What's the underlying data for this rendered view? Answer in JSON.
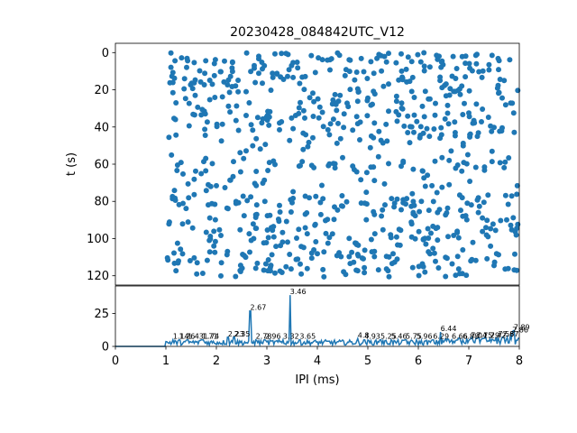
{
  "chart_data": [
    {
      "type": "scatter",
      "title": "20230428_084842UTC_V12",
      "xlabel": "",
      "ylabel": "t (s)",
      "xlim": [
        0,
        8
      ],
      "ylim": [
        125,
        -5
      ],
      "y_inverted": true,
      "yticks": [
        0,
        20,
        40,
        60,
        80,
        100,
        120
      ],
      "color": "#1f77b4",
      "grid": false,
      "points_note_x_range": [
        1.0,
        8.0
      ],
      "points_note_y_range": [
        0,
        121
      ],
      "points": []
    },
    {
      "type": "line",
      "xlabel": "IPI (ms)",
      "ylabel": "",
      "xlim": [
        0,
        8
      ],
      "ylim": [
        0,
        46
      ],
      "xticks": [
        0,
        1,
        2,
        3,
        4,
        5,
        6,
        7,
        8
      ],
      "yticks": [
        0,
        25
      ],
      "color": "#1f77b4",
      "grid": false,
      "peak_labels": [
        {
          "x": 1.14,
          "y": 5,
          "text": "1.14"
        },
        {
          "x": 1.26,
          "y": 5,
          "text": "1.26"
        },
        {
          "x": 1.43,
          "y": 5,
          "text": "1.43"
        },
        {
          "x": 1.71,
          "y": 5,
          "text": "1.71"
        },
        {
          "x": 1.74,
          "y": 5,
          "text": "1.74"
        },
        {
          "x": 2.23,
          "y": 7,
          "text": "2.23"
        },
        {
          "x": 2.35,
          "y": 7,
          "text": "2.35"
        },
        {
          "x": 2.67,
          "y": 27,
          "text": "2.67"
        },
        {
          "x": 2.78,
          "y": 5,
          "text": "2.78"
        },
        {
          "x": 2.96,
          "y": 5,
          "text": "2.96"
        },
        {
          "x": 3.32,
          "y": 5,
          "text": "3.32"
        },
        {
          "x": 3.46,
          "y": 39,
          "text": "3.46"
        },
        {
          "x": 3.65,
          "y": 5,
          "text": "3.65"
        },
        {
          "x": 4.8,
          "y": 6,
          "text": "4.8"
        },
        {
          "x": 4.93,
          "y": 5,
          "text": "4.93"
        },
        {
          "x": 5.25,
          "y": 5,
          "text": "5.25"
        },
        {
          "x": 5.46,
          "y": 5,
          "text": "5.46"
        },
        {
          "x": 5.75,
          "y": 5,
          "text": "5.75"
        },
        {
          "x": 5.96,
          "y": 5,
          "text": "5.96"
        },
        {
          "x": 6.29,
          "y": 5,
          "text": "6.29"
        },
        {
          "x": 6.44,
          "y": 11,
          "text": "6.44"
        },
        {
          "x": 6.66,
          "y": 5,
          "text": "6.66"
        },
        {
          "x": 6.88,
          "y": 5,
          "text": "6.88"
        },
        {
          "x": 7.04,
          "y": 6,
          "text": "7.04"
        },
        {
          "x": 7.15,
          "y": 6,
          "text": "7.15"
        },
        {
          "x": 7.29,
          "y": 6,
          "text": "7.29"
        },
        {
          "x": 7.42,
          "y": 6,
          "text": "7.42"
        },
        {
          "x": 7.58,
          "y": 7,
          "text": "7.58"
        },
        {
          "x": 7.67,
          "y": 7,
          "text": "7.67"
        },
        {
          "x": 7.86,
          "y": 10,
          "text": "7.86"
        },
        {
          "x": 7.89,
          "y": 12,
          "text": "7.89"
        }
      ],
      "x": [],
      "y": []
    }
  ]
}
